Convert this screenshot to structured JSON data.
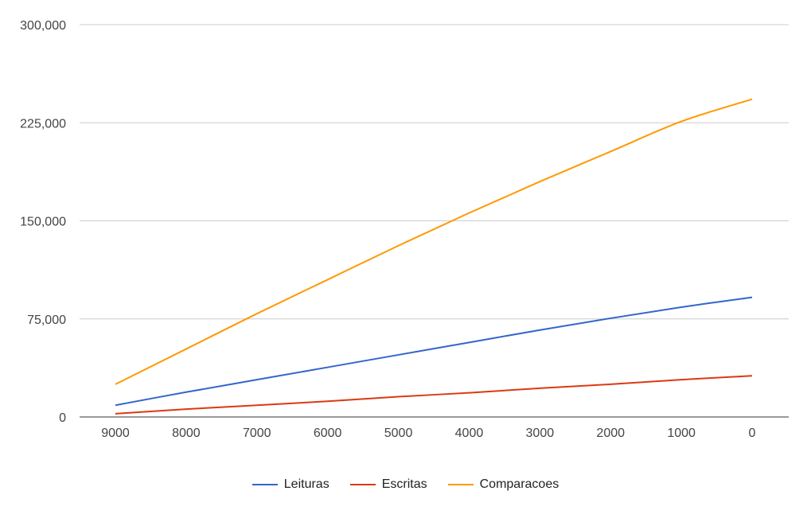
{
  "chart_data": {
    "type": "line",
    "title": "",
    "xlabel": "",
    "ylabel": "",
    "x": [
      9000,
      8000,
      7000,
      6000,
      5000,
      4000,
      3000,
      2000,
      1000,
      0
    ],
    "x_tick_labels": [
      "9000",
      "8000",
      "7000",
      "6000",
      "5000",
      "4000",
      "3000",
      "2000",
      "1000",
      "0"
    ],
    "ylim": [
      0,
      300000
    ],
    "y_ticks": [
      0,
      75000,
      150000,
      225000,
      300000
    ],
    "y_tick_labels": [
      "0",
      "75,000",
      "150,000",
      "225,000",
      "300,000"
    ],
    "grid": true,
    "legend_position": "bottom",
    "series": [
      {
        "name": "Leituras",
        "color": "#3366cc",
        "values": [
          9000,
          19000,
          28500,
          38000,
          47500,
          57000,
          66500,
          75500,
          84000,
          91500
        ]
      },
      {
        "name": "Escritas",
        "color": "#dc3912",
        "values": [
          2500,
          6000,
          9000,
          12000,
          15500,
          18500,
          22000,
          25000,
          28500,
          31500
        ]
      },
      {
        "name": "Comparacoes",
        "color": "#ff9900",
        "values": [
          25000,
          52000,
          79000,
          105000,
          131000,
          156000,
          180000,
          203000,
          226000,
          243000
        ]
      }
    ]
  }
}
